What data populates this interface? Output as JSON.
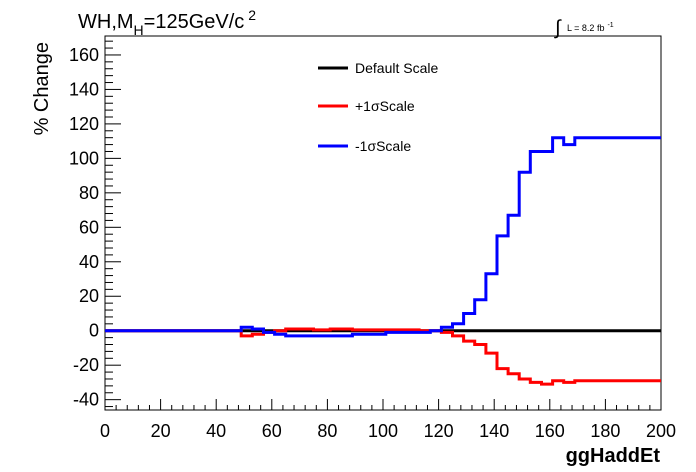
{
  "chart_data": {
    "type": "line",
    "title_parts": {
      "pre": "WH,M",
      "sub": "H",
      "post": "=125GeV/c",
      "sup": "2"
    },
    "lumi": {
      "text": "L = 8.2 fb",
      "sup": "-1"
    },
    "xlabel": "ggHaddEt",
    "ylabel": "% Change",
    "xlim": [
      0,
      200
    ],
    "ylim": [
      -46,
      171
    ],
    "x_ticks": [
      0,
      20,
      40,
      60,
      80,
      100,
      120,
      140,
      160,
      180,
      200
    ],
    "y_ticks": [
      -40,
      -20,
      0,
      20,
      40,
      60,
      80,
      100,
      120,
      140,
      160
    ],
    "x_tick_labels": [
      "0",
      "20",
      "40",
      "60",
      "80",
      "100",
      "120",
      "140",
      "160",
      "180",
      "200"
    ],
    "y_tick_labels": [
      "-40",
      "-20",
      "0",
      "20",
      "40",
      "60",
      "80",
      "100",
      "120",
      "140",
      "160"
    ],
    "grid": false,
    "legend_position": "top-center",
    "series": [
      {
        "name": "Default Scale",
        "color": "#000000",
        "edges": [
          0,
          200
        ],
        "values": [
          0
        ]
      },
      {
        "name": "+1σScale",
        "color": "#ff0000",
        "edges": [
          0,
          49,
          53,
          57,
          61,
          65,
          75,
          81,
          89,
          101,
          113,
          117,
          121,
          125,
          129,
          133,
          137,
          141,
          145,
          149,
          153,
          157,
          161,
          165,
          169,
          200
        ],
        "values": [
          0,
          -3,
          -2,
          -1,
          0,
          1,
          0.5,
          1,
          0.5,
          0.5,
          0,
          0,
          -1,
          -3,
          -6,
          -8,
          -13,
          -22,
          -25,
          -28,
          -30,
          -31,
          -29,
          -30,
          -29
        ]
      },
      {
        "name": "-1σScale",
        "color": "#0000ff",
        "edges": [
          0,
          49,
          53,
          57,
          61,
          65,
          89,
          93,
          101,
          117,
          121,
          125,
          129,
          133,
          137,
          141,
          145,
          149,
          153,
          161,
          165,
          169,
          200
        ],
        "values": [
          0,
          2,
          1,
          -1,
          -2,
          -3,
          -2,
          -2,
          -1,
          0,
          2,
          4,
          10,
          18,
          33,
          55,
          67,
          92,
          104,
          112,
          108,
          112,
          112
        ]
      }
    ]
  }
}
